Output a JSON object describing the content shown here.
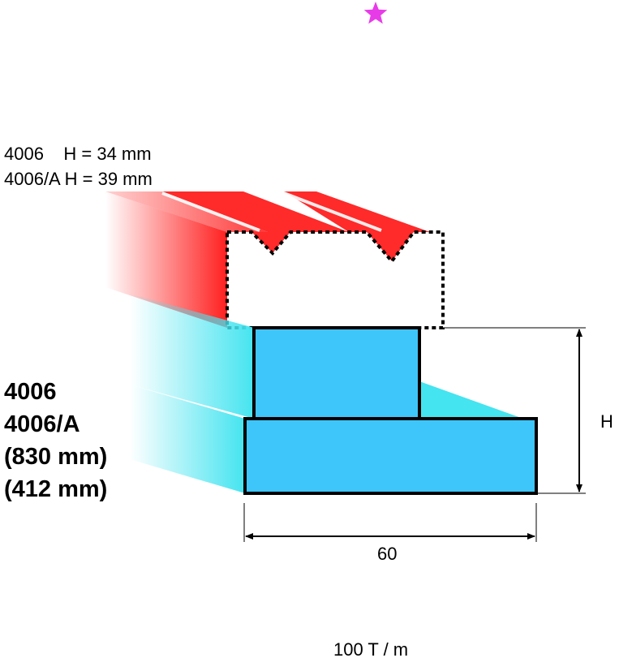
{
  "marker": {
    "icon": "star-icon",
    "color": "#e83be8"
  },
  "colors": {
    "red": "#ff1f1f",
    "cyan": "#3ec6fb",
    "cyan_light": "#44e4f0",
    "outline": "#000000"
  },
  "header_lines": [
    "4006    H = 34 mm",
    "4006/A H = 39 mm"
  ],
  "side_lines": [
    "4006",
    "4006/A",
    "(830 mm)",
    "(412 mm)"
  ],
  "dimensions": {
    "height_label": "H",
    "width_label": "60"
  },
  "footer": "100 T / m"
}
